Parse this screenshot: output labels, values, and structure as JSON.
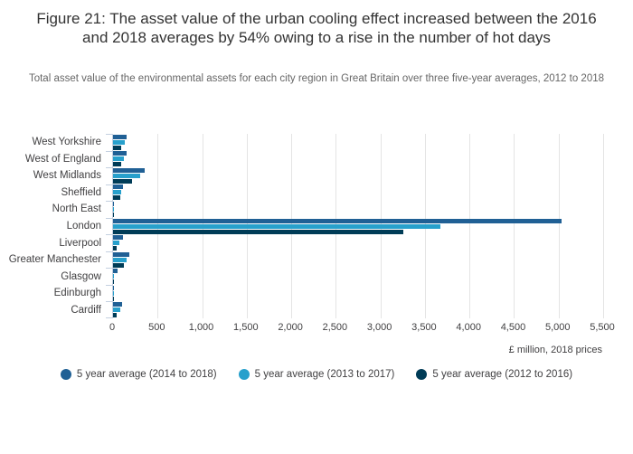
{
  "header": {
    "title": "Figure 21: The asset value of the urban cooling effect increased between the 2016 and 2018 averages by 54% owing to a rise in the number of hot days",
    "subtitle": "Total asset value of the environmental assets for each city region in Great Britain over three five-year averages, 2012 to 2018"
  },
  "chart_data": {
    "type": "bar",
    "orientation": "horizontal",
    "title": "Figure 21: The asset value of the urban cooling effect increased between the 2016 and 2018 averages by 54% owing to a rise in the number of hot days",
    "subtitle": "Total asset value of the environmental assets for each city region in Great Britain over three five-year averages, 2012 to 2018",
    "categories": [
      "West Yorkshire",
      "West of England",
      "West Midlands",
      "Sheffield",
      "North East",
      "London",
      "Liverpool",
      "Greater Manchester",
      "Glasgow",
      "Edinburgh",
      "Cardiff"
    ],
    "series": [
      {
        "name": "5 year average (2014 to 2018)",
        "color": "#206095",
        "values": [
          150,
          150,
          355,
          110,
          1,
          5030,
          110,
          180,
          55,
          1,
          100
        ]
      },
      {
        "name": "5 year average (2013 to 2017)",
        "color": "#27A0CC",
        "values": [
          135,
          120,
          300,
          90,
          1,
          3670,
          75,
          150,
          5,
          1,
          80
        ]
      },
      {
        "name": "5 year average (2012 to 2016)",
        "color": "#003C57",
        "values": [
          95,
          90,
          215,
          80,
          1,
          3260,
          40,
          120,
          3,
          1,
          45
        ]
      }
    ],
    "xlabel": "£ million, 2018 prices",
    "ylabel": "",
    "xlim": [
      0,
      5500
    ],
    "xticks": [
      0,
      500,
      1000,
      1500,
      2000,
      2500,
      3000,
      3500,
      4000,
      4500,
      5000,
      5500
    ],
    "xtick_labels": [
      "0",
      "500",
      "1,000",
      "1,500",
      "2,000",
      "2,500",
      "3,000",
      "3,500",
      "4,000",
      "4,500",
      "5,000",
      "5,500"
    ],
    "grid": "vertical",
    "legend_position": "bottom"
  },
  "colors": {
    "series_1": "#206095",
    "series_2": "#27A0CC",
    "series_3": "#003C57",
    "gridline": "#e4e4e4",
    "axis_line": "#c4d0e0",
    "title_text": "#333333",
    "subtitle_text": "#666666",
    "axis_text": "#414042"
  }
}
